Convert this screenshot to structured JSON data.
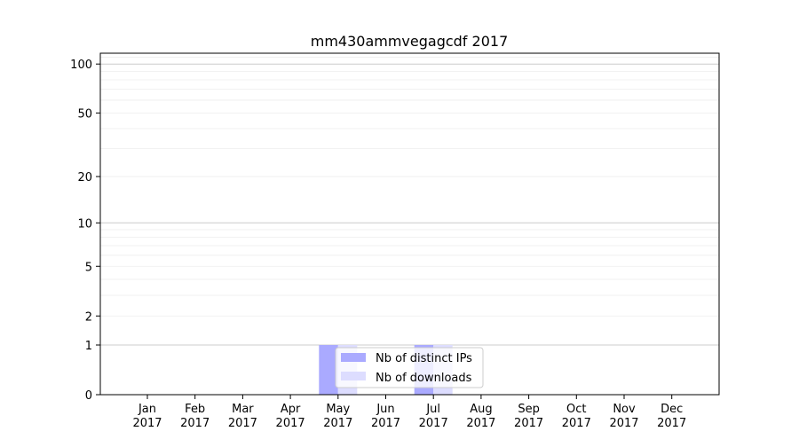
{
  "chart_data": {
    "type": "bar",
    "title": "mm430ammvegagcdf 2017",
    "xlabel": "",
    "ylabel": "",
    "yscale": "symlog",
    "ylim": [
      0,
      117
    ],
    "yticks": [
      0,
      1,
      2,
      5,
      10,
      20,
      50,
      100
    ],
    "grid": true,
    "legend_position": "lower-center",
    "categories": [
      "Jan\n2017",
      "Feb\n2017",
      "Mar\n2017",
      "Apr\n2017",
      "May\n2017",
      "Jun\n2017",
      "Jul\n2017",
      "Aug\n2017",
      "Sep\n2017",
      "Oct\n2017",
      "Nov\n2017",
      "Dec\n2017"
    ],
    "series": [
      {
        "name": "Nb of distinct IPs",
        "color": "#aaaaff",
        "values": [
          0,
          0,
          0,
          0,
          1,
          0,
          1,
          0,
          0,
          0,
          0,
          0
        ]
      },
      {
        "name": "Nb of downloads",
        "color": "#ddddff",
        "values": [
          0,
          0,
          0,
          0,
          1,
          0,
          1,
          0,
          0,
          0,
          0,
          0
        ]
      }
    ]
  }
}
